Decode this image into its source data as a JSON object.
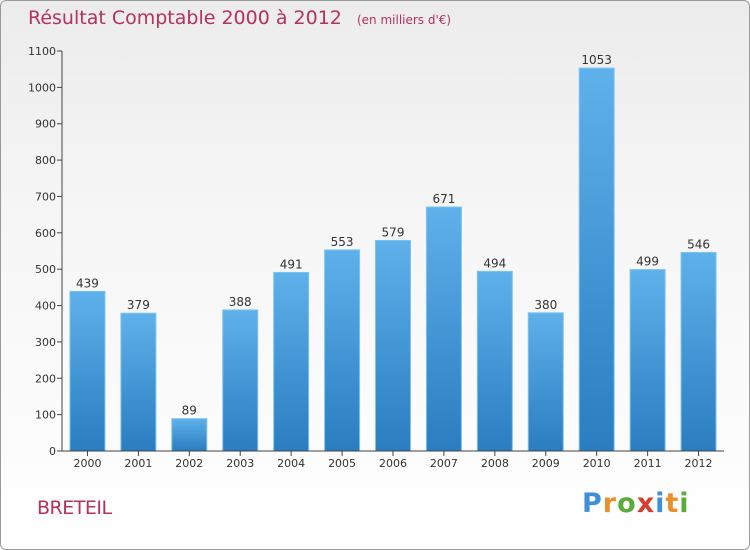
{
  "title": "Résultat Comptable 2000 à 2012",
  "unit": "(en milliers d'€)",
  "town": "BRETEIL",
  "logo": {
    "letters": [
      "P",
      "r",
      "o",
      "x",
      "i",
      "t",
      "i"
    ],
    "colors": [
      "#3d8fd6",
      "#e8912b",
      "#5aab3a",
      "#d93d2e",
      "#3d8fd6",
      "#e8912b",
      "#5aab3a"
    ]
  },
  "chart_data": {
    "type": "bar",
    "categories": [
      "2000",
      "2001",
      "2002",
      "2003",
      "2004",
      "2005",
      "2006",
      "2007",
      "2008",
      "2009",
      "2010",
      "2011",
      "2012"
    ],
    "values": [
      439,
      379,
      89,
      388,
      491,
      553,
      579,
      671,
      494,
      380,
      1053,
      499,
      546
    ],
    "ylim": [
      0,
      1100
    ],
    "yticks": [
      0,
      100,
      200,
      300,
      400,
      500,
      600,
      700,
      800,
      900,
      1000,
      1100
    ],
    "grid": false,
    "bar_color_top": "#5eb1ea",
    "bar_color_bottom": "#2a7dc0"
  }
}
